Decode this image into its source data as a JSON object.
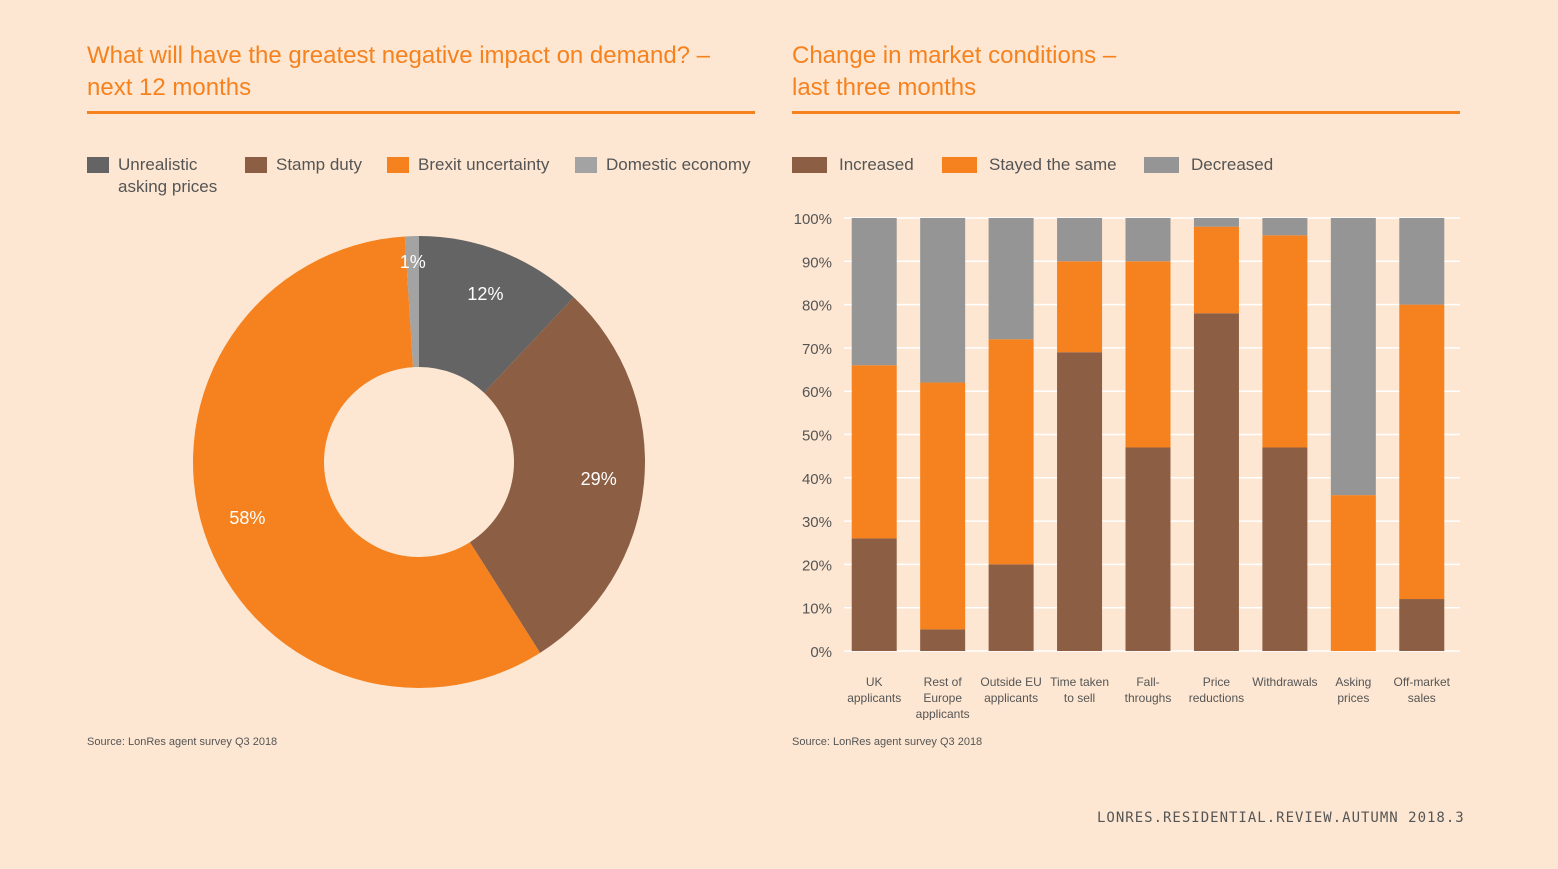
{
  "pie_panel": {
    "title_line1": "What will have the greatest negative impact on demand? –",
    "title_line2": "next 12 months",
    "legend": [
      {
        "line1": "Unrealistic",
        "line2": "asking prices",
        "color": "#646464"
      },
      {
        "line1": "Stamp duty",
        "line2": "",
        "color": "#8c5e44"
      },
      {
        "line1": "Brexit uncertainty",
        "line2": "",
        "color": "#f5821f"
      },
      {
        "line1": "Domestic economy",
        "line2": "",
        "color": "#a3a3a3"
      }
    ],
    "source": "Source: LonRes agent survey Q3 2018"
  },
  "bar_panel": {
    "title_line1": "Change in market conditions –",
    "title_line2": "last three months",
    "legend": [
      {
        "line1": "Increased",
        "color": "#8c5e44"
      },
      {
        "line1": "Stayed the same",
        "color": "#f5821f"
      },
      {
        "line1": "Decreased",
        "color": "#959595"
      }
    ],
    "source": "Source: LonRes agent survey Q3 2018"
  },
  "footer": "LONRES.RESIDENTIAL.REVIEW.AUTUMN 2018.3",
  "chart_data": [
    {
      "type": "pie",
      "title": "What will have the greatest negative impact on demand? – next 12 months",
      "donut": true,
      "legend_position": "top",
      "slices": [
        {
          "label": "Unrealistic asking prices",
          "value": 12,
          "value_label": "12%",
          "color": "#646464"
        },
        {
          "label": "Stamp duty",
          "value": 29,
          "value_label": "29%",
          "color": "#8c5e44"
        },
        {
          "label": "Brexit uncertainty",
          "value": 58,
          "value_label": "58%",
          "color": "#f5821f"
        },
        {
          "label": "Domestic economy",
          "value": 1,
          "value_label": "1%",
          "color": "#a3a3a3"
        }
      ]
    },
    {
      "type": "bar",
      "stacked": true,
      "title": "Change in market conditions – last three months",
      "ylim": [
        0,
        100
      ],
      "yticks": [
        "0%",
        "10%",
        "20%",
        "30%",
        "40%",
        "50%",
        "60%",
        "70%",
        "80%",
        "90%",
        "100%"
      ],
      "grid": true,
      "legend_position": "top",
      "categories": [
        [
          "UK",
          "applicants"
        ],
        [
          "Rest of",
          "Europe",
          "applicants"
        ],
        [
          "Outside EU",
          "applicants"
        ],
        [
          "Time taken",
          "to sell"
        ],
        [
          "Fall-",
          "throughs"
        ],
        [
          "Price",
          "reductions"
        ],
        [
          "Withdrawals"
        ],
        [
          "Asking",
          "prices"
        ],
        [
          "Off-market",
          "sales"
        ]
      ],
      "series": [
        {
          "name": "Increased",
          "color": "#8c5e44",
          "values": [
            26,
            5,
            20,
            69,
            47,
            78,
            47,
            0,
            12
          ]
        },
        {
          "name": "Stayed the same",
          "color": "#f5821f",
          "values": [
            40,
            57,
            52,
            21,
            43,
            20,
            49,
            36,
            68
          ]
        },
        {
          "name": "Decreased",
          "color": "#959595",
          "values": [
            34,
            38,
            28,
            10,
            10,
            2,
            4,
            64,
            20
          ]
        }
      ]
    }
  ]
}
